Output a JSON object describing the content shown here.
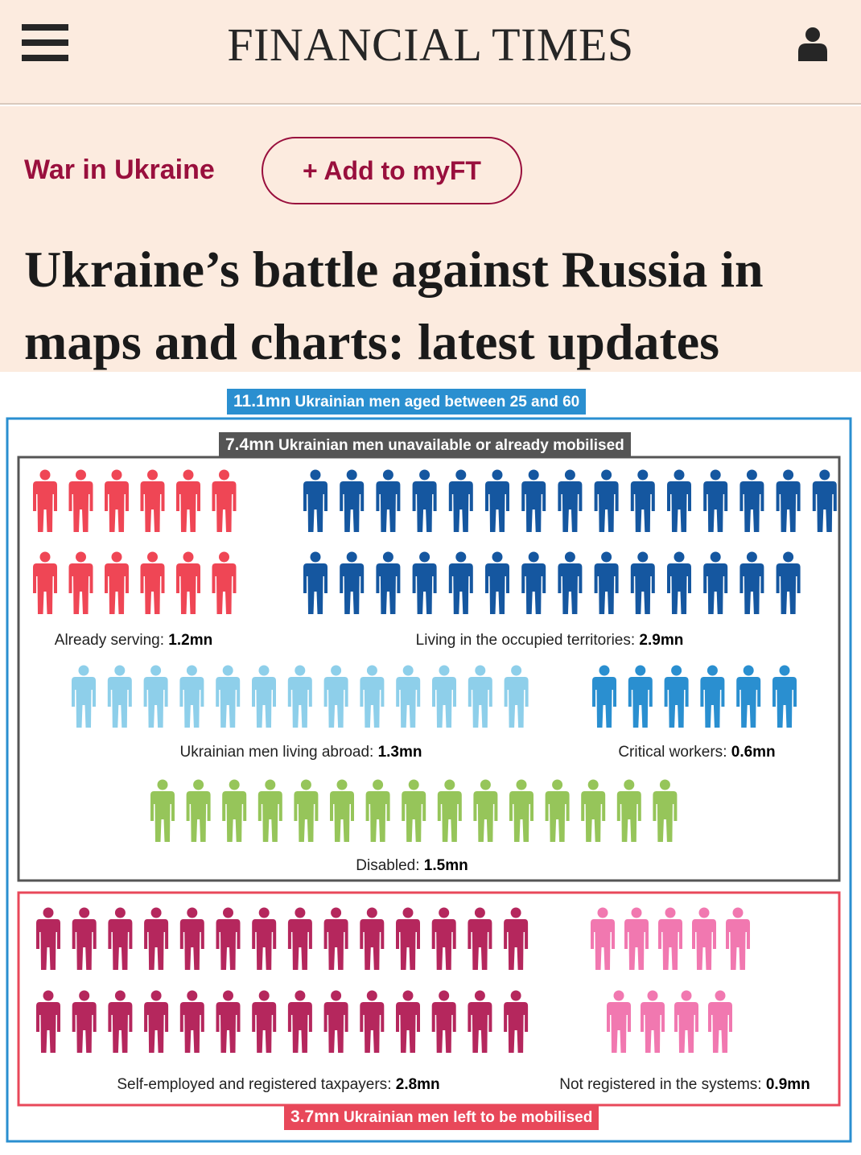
{
  "header": {
    "brand": "FINANCIAL TIMES",
    "menu_icon": "hamburger-menu-icon",
    "account_icon": "user-account-icon"
  },
  "article": {
    "topic": "War in Ukraine",
    "myft_label": "+ Add to myFT",
    "headline": "Ukraine’s battle against Russia in maps and charts: latest updates"
  },
  "chart_data": {
    "type": "pictogram",
    "total": {
      "value": "11.1mn",
      "label": "Ukrainian men aged between 25 and 60",
      "color": "#2a8fd0"
    },
    "unavailable": {
      "value": "7.4mn",
      "label": "Ukrainian men unavailable or already mobilised",
      "color": "#555555"
    },
    "remaining": {
      "value": "3.7mn",
      "label": "Ukrainian men left to be mobilised",
      "color": "#e8485a"
    },
    "groups": [
      {
        "name": "Already serving",
        "value": "1.2mn",
        "color": "#ef4655",
        "icons": 12
      },
      {
        "name": "Living in the occupied territories",
        "value": "2.9mn",
        "color": "#1557a0",
        "icons": 29
      },
      {
        "name": "Ukrainian men living abroad",
        "value": "1.3mn",
        "color": "#8ecfea",
        "icons": 13
      },
      {
        "name": "Critical workers",
        "value": "0.6mn",
        "color": "#2a8fd0",
        "icons": 6
      },
      {
        "name": "Disabled",
        "value": "1.5mn",
        "color": "#96c55a",
        "icons": 15
      },
      {
        "name": "Self-employed and registered taxpayers",
        "value": "2.8mn",
        "color": "#b5275d",
        "icons": 28
      },
      {
        "name": "Not registered in the systems",
        "value": "0.9mn",
        "color": "#f178b0",
        "icons": 9
      }
    ]
  }
}
